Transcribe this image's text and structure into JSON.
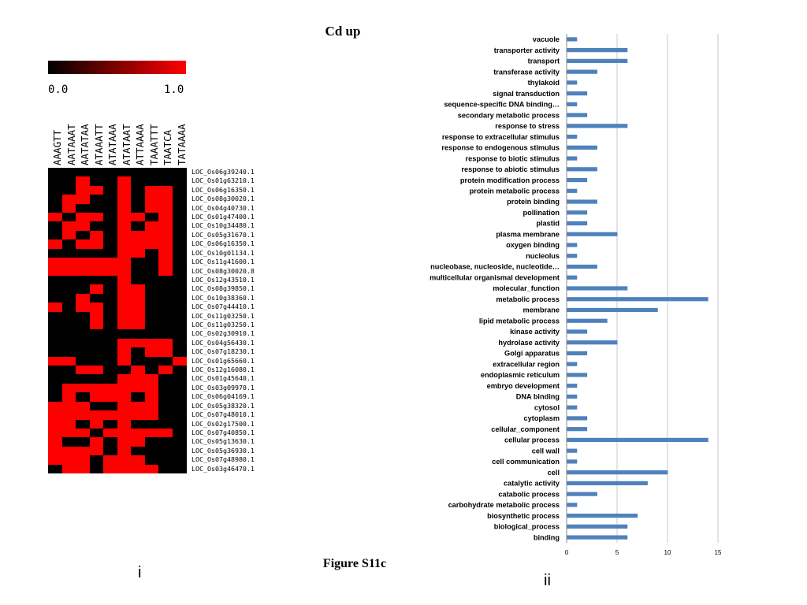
{
  "figure": {
    "title": "Cd up",
    "caption": "Figure S11c",
    "panel_i": "i",
    "panel_ii": "ii"
  },
  "colors": {
    "bar": "#4f81bd",
    "heat_low": "#000000",
    "heat_high": "#ff0000",
    "gridline": "#c8c8c8"
  },
  "chart_data": [
    {
      "type": "heatmap",
      "scale": {
        "min_label": "0.0",
        "max_label": "1.0",
        "range": [
          0,
          1
        ]
      },
      "columns": [
        "AAAGTT",
        "AATAAAT",
        "AATATAA",
        "ATAAATT",
        "ATATAAA",
        "ATATAAT",
        "ATTAAAA",
        "TAAATTT",
        "TAATCA",
        "TATAAAA"
      ],
      "rows": [
        "LOC_Os06g39240.1",
        "LOC_Os01g63210.1",
        "LOC_Os06g16350.1",
        "LOC_Os08g30020.1",
        "LOC_Os04g40730.1",
        "LOC_Os01g47400.1",
        "LOC_Os10g34480.1",
        "LOC_Os05g31670.1",
        "LOC_Os06g16350.1",
        "LOC_Os10g01134.1",
        "LOC_Os11g41600.1",
        "LOC_Os08g30020.8",
        "LOC_Os12g43510.1",
        "LOC_Os08g39850.1",
        "LOC_Os10g38360.1",
        "LOC_Os07g44410.1",
        "LOC_Os11g03250.1",
        "LOC_Os11g03250.1",
        "LOC_Os02g30910.1",
        "LOC_Os04g56430.1",
        "LOC_Os07g18230.1",
        "LOC_Os01g65660.1",
        "LOC_Os12g16080.1",
        "LOC_Os01g45640.1",
        "LOC_Os03g09970.1",
        "LOC_Os06g04169.1",
        "LOC_Os05g38320.1",
        "LOC_Os07g48010.1",
        "LOC_Os02g17500.1",
        "LOC_Os07g40850.1",
        "LOC_Os05g13630.1",
        "LOC_Os05g36930.1",
        "LOC_Os07g48980.1",
        "LOC_Os03g46470.1"
      ],
      "values": [
        [
          0,
          0,
          0,
          0,
          0,
          0,
          0,
          0,
          0,
          0
        ],
        [
          0,
          0,
          1,
          0,
          0,
          1,
          0,
          0,
          0,
          0
        ],
        [
          0,
          0,
          1,
          1,
          0,
          1,
          0,
          1,
          1,
          0
        ],
        [
          0,
          1,
          1,
          0,
          0,
          1,
          0,
          1,
          1,
          0
        ],
        [
          0,
          1,
          0,
          0,
          0,
          1,
          0,
          1,
          1,
          0
        ],
        [
          1,
          0,
          1,
          1,
          0,
          1,
          1,
          0,
          1,
          0
        ],
        [
          0,
          1,
          1,
          0,
          0,
          1,
          0,
          1,
          1,
          0
        ],
        [
          0,
          1,
          0,
          1,
          0,
          1,
          1,
          1,
          1,
          0
        ],
        [
          1,
          0,
          1,
          1,
          0,
          1,
          1,
          1,
          1,
          0
        ],
        [
          0,
          0,
          0,
          0,
          0,
          1,
          1,
          0,
          1,
          0
        ],
        [
          1,
          1,
          1,
          1,
          1,
          1,
          0,
          0,
          1,
          0
        ],
        [
          1,
          1,
          1,
          1,
          1,
          1,
          0,
          0,
          1,
          0
        ],
        [
          0,
          0,
          0,
          0,
          0,
          1,
          0,
          0,
          0,
          0
        ],
        [
          0,
          0,
          0,
          1,
          0,
          1,
          1,
          0,
          0,
          0
        ],
        [
          0,
          0,
          1,
          0,
          0,
          1,
          1,
          0,
          0,
          0
        ],
        [
          1,
          0,
          1,
          1,
          0,
          1,
          1,
          0,
          0,
          0
        ],
        [
          0,
          0,
          0,
          1,
          0,
          1,
          1,
          0,
          0,
          0
        ],
        [
          0,
          0,
          0,
          1,
          0,
          1,
          1,
          0,
          0,
          0
        ],
        [
          0,
          0,
          0,
          0,
          0,
          0,
          0,
          0,
          0,
          0
        ],
        [
          0,
          0,
          0,
          0,
          0,
          1,
          1,
          1,
          1,
          0
        ],
        [
          0,
          0,
          0,
          0,
          0,
          1,
          0,
          1,
          1,
          0
        ],
        [
          1,
          1,
          0,
          0,
          0,
          1,
          0,
          0,
          0,
          1
        ],
        [
          0,
          0,
          1,
          1,
          0,
          0,
          1,
          0,
          1,
          0
        ],
        [
          0,
          0,
          0,
          0,
          0,
          1,
          1,
          1,
          0,
          0
        ],
        [
          0,
          1,
          1,
          1,
          1,
          1,
          1,
          1,
          0,
          0
        ],
        [
          0,
          1,
          0,
          1,
          1,
          1,
          0,
          1,
          0,
          0
        ],
        [
          1,
          1,
          1,
          0,
          0,
          1,
          1,
          1,
          0,
          0
        ],
        [
          1,
          1,
          1,
          1,
          1,
          1,
          1,
          1,
          0,
          0
        ],
        [
          1,
          1,
          0,
          1,
          0,
          1,
          0,
          0,
          0,
          0
        ],
        [
          1,
          1,
          1,
          0,
          1,
          1,
          1,
          1,
          1,
          0
        ],
        [
          1,
          0,
          0,
          1,
          0,
          1,
          1,
          0,
          0,
          0
        ],
        [
          1,
          1,
          1,
          1,
          0,
          1,
          0,
          0,
          0,
          0
        ],
        [
          1,
          1,
          1,
          0,
          1,
          1,
          1,
          0,
          0,
          0
        ],
        [
          0,
          1,
          1,
          0,
          1,
          1,
          1,
          1,
          0,
          0
        ]
      ]
    },
    {
      "type": "bar",
      "orientation": "horizontal",
      "categories": [
        "vacuole",
        "transporter activity",
        "transport",
        "transferase activity",
        "thylakoid",
        "signal transduction",
        "sequence-specific DNA binding…",
        "secondary metabolic process",
        "response to stress",
        "response to extracellular stimulus",
        "response to endogenous stimulus",
        "response to biotic stimulus",
        "response to abiotic stimulus",
        "protein modification process",
        "protein metabolic process",
        "protein binding",
        "pollination",
        "plastid",
        "plasma membrane",
        "oxygen binding",
        "nucleolus",
        "nucleobase, nucleoside, nucleotide…",
        "multicellular organismal development",
        "molecular_function",
        "metabolic process",
        "membrane",
        "lipid metabolic process",
        "kinase activity",
        "hydrolase activity",
        "Golgi apparatus",
        "extracellular region",
        "endoplasmic reticulum",
        "embryo development",
        "DNA binding",
        "cytosol",
        "cytoplasm",
        "cellular_component",
        "cellular process",
        "cell wall",
        "cell communication",
        "cell",
        "catalytic activity",
        "catabolic process",
        "carbohydrate metabolic process",
        "biosynthetic process",
        "biological_process",
        "binding"
      ],
      "values": [
        1,
        6,
        6,
        3,
        1,
        2,
        1,
        2,
        6,
        1,
        3,
        1,
        3,
        2,
        1,
        3,
        2,
        2,
        5,
        1,
        1,
        3,
        1,
        6,
        14,
        9,
        4,
        2,
        5,
        2,
        1,
        2,
        1,
        1,
        1,
        2,
        2,
        14,
        1,
        1,
        10,
        8,
        3,
        1,
        7,
        6,
        6
      ],
      "xlim": [
        0,
        15
      ],
      "xticks": [
        "0",
        "5",
        "10",
        "15"
      ],
      "grid": true
    }
  ]
}
